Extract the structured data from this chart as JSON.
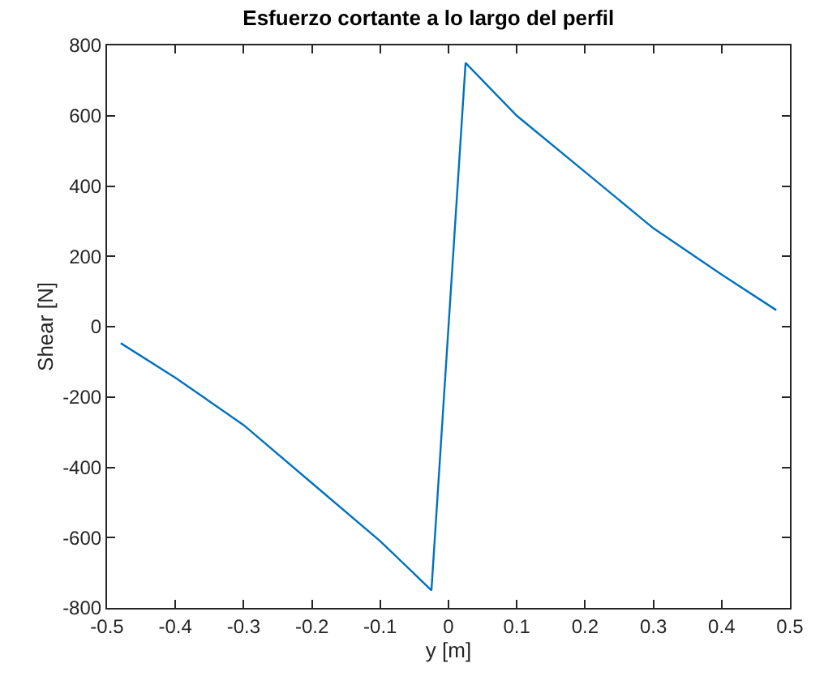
{
  "chart_data": {
    "type": "line",
    "title": "Esfuerzo cortante a lo largo del perfil",
    "xlabel": "y [m]",
    "ylabel": "Shear [N]",
    "x": [
      -0.48,
      -0.4,
      -0.3,
      -0.2,
      -0.1,
      -0.025,
      0.025,
      0.1,
      0.2,
      0.3,
      0.4,
      0.48
    ],
    "series": [
      {
        "color": "#0072bd",
        "values": [
          -47,
          -145,
          -280,
          -445,
          -610,
          -750,
          750,
          600,
          440,
          280,
          148,
          47
        ]
      }
    ],
    "xlim": [
      -0.5,
      0.5
    ],
    "xticks": [
      -0.5,
      -0.4,
      -0.3,
      -0.2,
      -0.1,
      0,
      0.1,
      0.2,
      0.3,
      0.4,
      0.5
    ],
    "ylim": [
      -800,
      800
    ],
    "yticks": [
      -800,
      -600,
      -400,
      -200,
      0,
      200,
      400,
      600,
      800
    ],
    "grid": false,
    "legend": false,
    "marker": "none",
    "line_style": "solid"
  }
}
